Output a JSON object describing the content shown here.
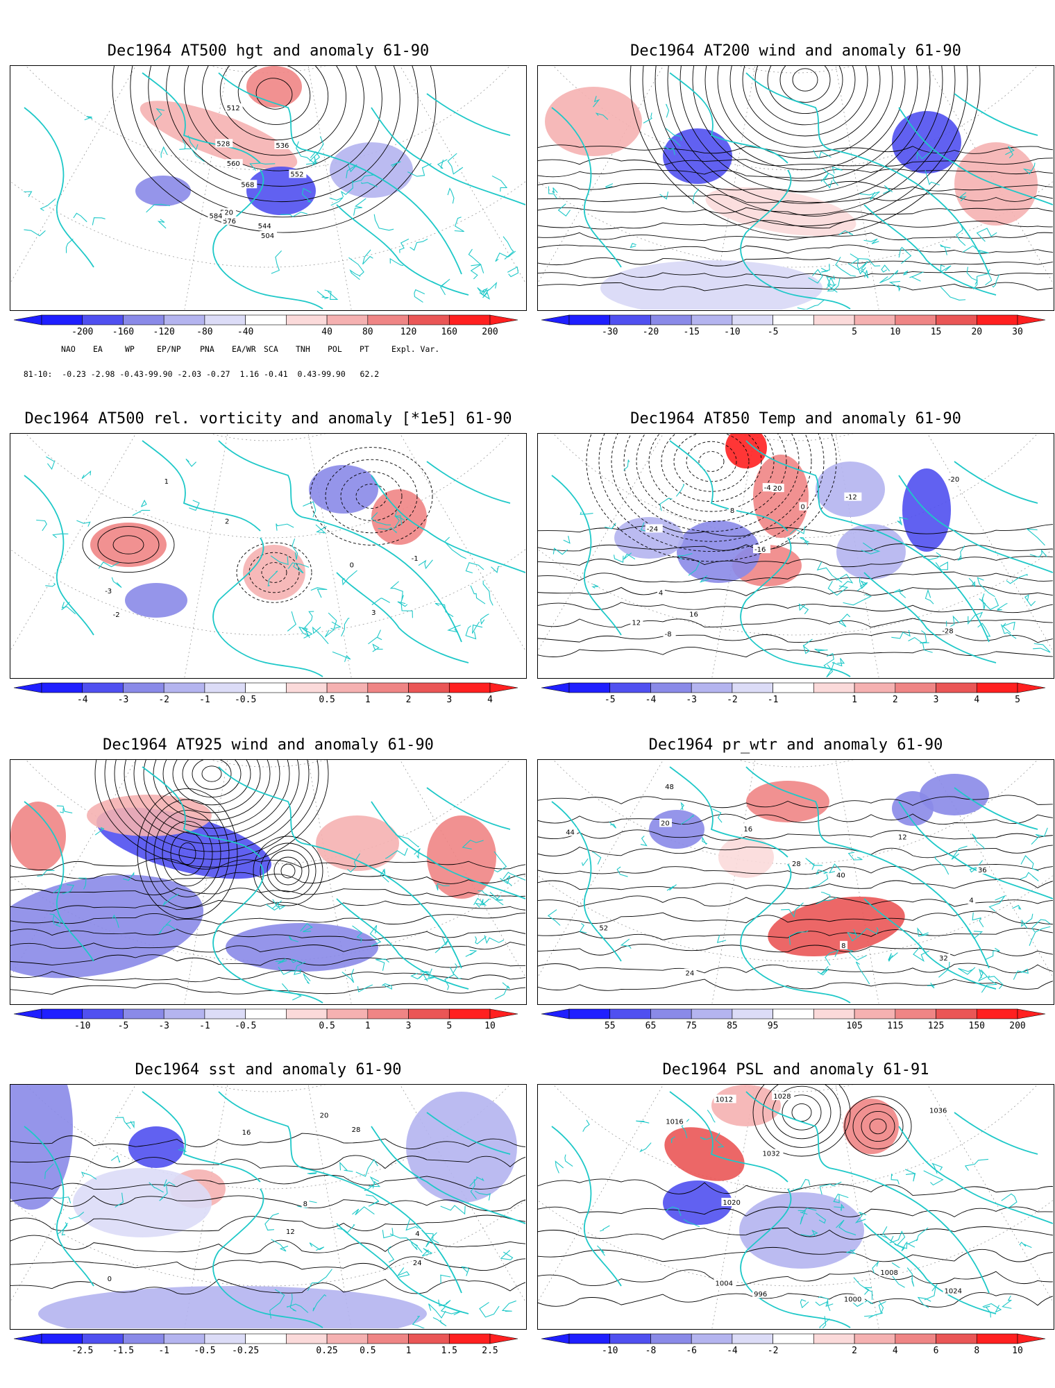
{
  "panels": [
    {
      "title": "Dec1964 AT500 hgt and anomaly 61-90",
      "ticks": [
        "-200",
        "-160",
        "-120",
        "-80",
        "-40",
        "40",
        "80",
        "120",
        "160",
        "200"
      ],
      "map_labels": [
        "504",
        "512",
        "520",
        "528",
        "536",
        "544",
        "552",
        "560",
        "568",
        "576",
        "584"
      ]
    },
    {
      "title": "Dec1964 AT200 wind and anomaly 61-90",
      "ticks": [
        "-30",
        "-20",
        "-15",
        "-10",
        "-5",
        "5",
        "10",
        "15",
        "20",
        "30"
      ],
      "map_labels": []
    },
    {
      "title": "Dec1964 AT500 rel. vorticity and anomaly [*1e5] 61-90",
      "ticks": [
        "-4",
        "-3",
        "-2",
        "-1",
        "-0.5",
        "0.5",
        "1",
        "2",
        "3",
        "4"
      ],
      "map_labels": [
        "0",
        "-1",
        "-2",
        "1",
        "2",
        "3",
        "-3"
      ]
    },
    {
      "title": "Dec1964 AT850 Temp and anomaly 61-90",
      "ticks": [
        "-5",
        "-4",
        "-3",
        "-2",
        "-1",
        "1",
        "2",
        "3",
        "4",
        "5"
      ],
      "map_labels": [
        "-28",
        "-24",
        "-20",
        "-16",
        "-12",
        "-8",
        "-4",
        "0",
        "4",
        "8",
        "12",
        "16",
        "20"
      ]
    },
    {
      "title": "Dec1964 AT925 wind and anomaly 61-90",
      "ticks": [
        "-10",
        "-5",
        "-3",
        "-1",
        "-0.5",
        "0.5",
        "1",
        "3",
        "5",
        "10"
      ],
      "map_labels": []
    },
    {
      "title": "Dec1964 pr_wtr and anomaly 61-90",
      "ticks": [
        "55",
        "65",
        "75",
        "85",
        "95",
        "105",
        "115",
        "125",
        "150",
        "200"
      ],
      "map_labels": [
        "4",
        "8",
        "12",
        "16",
        "20",
        "24",
        "28",
        "32",
        "36",
        "40",
        "44",
        "48",
        "52"
      ]
    },
    {
      "title": "Dec1964 sst and anomaly 61-90",
      "ticks": [
        "-2.5",
        "-1.5",
        "-1",
        "-0.5",
        "-0.25",
        "0.25",
        "0.5",
        "1",
        "1.5",
        "2.5"
      ],
      "map_labels": [
        "0",
        "4",
        "8",
        "12",
        "16",
        "20",
        "24",
        "28"
      ]
    },
    {
      "title": "Dec1964 PSL and anomaly 61-91",
      "ticks": [
        "-10",
        "-8",
        "-6",
        "-4",
        "-2",
        "2",
        "4",
        "6",
        "8",
        "10"
      ],
      "map_labels": [
        "996",
        "1000",
        "1004",
        "1008",
        "1012",
        "1016",
        "1020",
        "1024",
        "1028",
        "1032",
        "1036"
      ]
    }
  ],
  "teleconnections": {
    "headers": [
      "NAO",
      "EA",
      "WP",
      "EP/NP",
      "PNA",
      "EA/WR",
      "SCA",
      "TNH",
      "POL",
      "PT",
      "Expl. Var."
    ],
    "row_label": "81-10:",
    "values_line": "-0.23 -2.98 -0.43-99.90 -2.03 -0.27  1.16 -0.41  0.43-99.90   62.2"
  },
  "colors": {
    "blues": [
      "#1f1fff",
      "#5050f0",
      "#8a8ae8",
      "#b4b4ef",
      "#dcdcf7"
    ],
    "reds": [
      "#fbdada",
      "#f5b1b1",
      "#ef8585",
      "#ea5656",
      "#ff2020"
    ],
    "coast": "#1ec8c8",
    "contour": "#000000",
    "grid": "#9a9a9a"
  }
}
